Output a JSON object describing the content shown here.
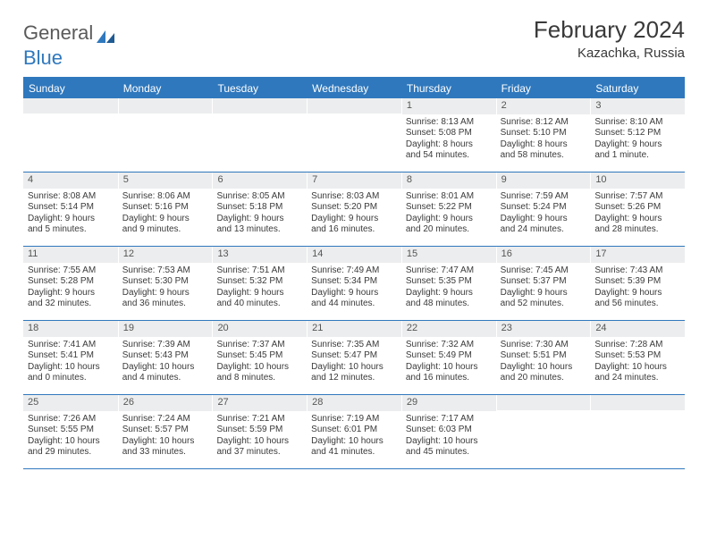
{
  "brand": {
    "part1": "General",
    "part2": "Blue"
  },
  "title": "February 2024",
  "location": "Kazachka, Russia",
  "colors": {
    "accent": "#2f78bd",
    "header_text": "#ffffff",
    "daynum_bg": "#ecedee",
    "body_text": "#3a3a3a",
    "page_bg": "#ffffff"
  },
  "dow": [
    "Sunday",
    "Monday",
    "Tuesday",
    "Wednesday",
    "Thursday",
    "Friday",
    "Saturday"
  ],
  "weeks": [
    [
      {
        "n": "",
        "lines": []
      },
      {
        "n": "",
        "lines": []
      },
      {
        "n": "",
        "lines": []
      },
      {
        "n": "",
        "lines": []
      },
      {
        "n": "1",
        "lines": [
          "Sunrise: 8:13 AM",
          "Sunset: 5:08 PM",
          "Daylight: 8 hours",
          "and 54 minutes."
        ]
      },
      {
        "n": "2",
        "lines": [
          "Sunrise: 8:12 AM",
          "Sunset: 5:10 PM",
          "Daylight: 8 hours",
          "and 58 minutes."
        ]
      },
      {
        "n": "3",
        "lines": [
          "Sunrise: 8:10 AM",
          "Sunset: 5:12 PM",
          "Daylight: 9 hours",
          "and 1 minute."
        ]
      }
    ],
    [
      {
        "n": "4",
        "lines": [
          "Sunrise: 8:08 AM",
          "Sunset: 5:14 PM",
          "Daylight: 9 hours",
          "and 5 minutes."
        ]
      },
      {
        "n": "5",
        "lines": [
          "Sunrise: 8:06 AM",
          "Sunset: 5:16 PM",
          "Daylight: 9 hours",
          "and 9 minutes."
        ]
      },
      {
        "n": "6",
        "lines": [
          "Sunrise: 8:05 AM",
          "Sunset: 5:18 PM",
          "Daylight: 9 hours",
          "and 13 minutes."
        ]
      },
      {
        "n": "7",
        "lines": [
          "Sunrise: 8:03 AM",
          "Sunset: 5:20 PM",
          "Daylight: 9 hours",
          "and 16 minutes."
        ]
      },
      {
        "n": "8",
        "lines": [
          "Sunrise: 8:01 AM",
          "Sunset: 5:22 PM",
          "Daylight: 9 hours",
          "and 20 minutes."
        ]
      },
      {
        "n": "9",
        "lines": [
          "Sunrise: 7:59 AM",
          "Sunset: 5:24 PM",
          "Daylight: 9 hours",
          "and 24 minutes."
        ]
      },
      {
        "n": "10",
        "lines": [
          "Sunrise: 7:57 AM",
          "Sunset: 5:26 PM",
          "Daylight: 9 hours",
          "and 28 minutes."
        ]
      }
    ],
    [
      {
        "n": "11",
        "lines": [
          "Sunrise: 7:55 AM",
          "Sunset: 5:28 PM",
          "Daylight: 9 hours",
          "and 32 minutes."
        ]
      },
      {
        "n": "12",
        "lines": [
          "Sunrise: 7:53 AM",
          "Sunset: 5:30 PM",
          "Daylight: 9 hours",
          "and 36 minutes."
        ]
      },
      {
        "n": "13",
        "lines": [
          "Sunrise: 7:51 AM",
          "Sunset: 5:32 PM",
          "Daylight: 9 hours",
          "and 40 minutes."
        ]
      },
      {
        "n": "14",
        "lines": [
          "Sunrise: 7:49 AM",
          "Sunset: 5:34 PM",
          "Daylight: 9 hours",
          "and 44 minutes."
        ]
      },
      {
        "n": "15",
        "lines": [
          "Sunrise: 7:47 AM",
          "Sunset: 5:35 PM",
          "Daylight: 9 hours",
          "and 48 minutes."
        ]
      },
      {
        "n": "16",
        "lines": [
          "Sunrise: 7:45 AM",
          "Sunset: 5:37 PM",
          "Daylight: 9 hours",
          "and 52 minutes."
        ]
      },
      {
        "n": "17",
        "lines": [
          "Sunrise: 7:43 AM",
          "Sunset: 5:39 PM",
          "Daylight: 9 hours",
          "and 56 minutes."
        ]
      }
    ],
    [
      {
        "n": "18",
        "lines": [
          "Sunrise: 7:41 AM",
          "Sunset: 5:41 PM",
          "Daylight: 10 hours",
          "and 0 minutes."
        ]
      },
      {
        "n": "19",
        "lines": [
          "Sunrise: 7:39 AM",
          "Sunset: 5:43 PM",
          "Daylight: 10 hours",
          "and 4 minutes."
        ]
      },
      {
        "n": "20",
        "lines": [
          "Sunrise: 7:37 AM",
          "Sunset: 5:45 PM",
          "Daylight: 10 hours",
          "and 8 minutes."
        ]
      },
      {
        "n": "21",
        "lines": [
          "Sunrise: 7:35 AM",
          "Sunset: 5:47 PM",
          "Daylight: 10 hours",
          "and 12 minutes."
        ]
      },
      {
        "n": "22",
        "lines": [
          "Sunrise: 7:32 AM",
          "Sunset: 5:49 PM",
          "Daylight: 10 hours",
          "and 16 minutes."
        ]
      },
      {
        "n": "23",
        "lines": [
          "Sunrise: 7:30 AM",
          "Sunset: 5:51 PM",
          "Daylight: 10 hours",
          "and 20 minutes."
        ]
      },
      {
        "n": "24",
        "lines": [
          "Sunrise: 7:28 AM",
          "Sunset: 5:53 PM",
          "Daylight: 10 hours",
          "and 24 minutes."
        ]
      }
    ],
    [
      {
        "n": "25",
        "lines": [
          "Sunrise: 7:26 AM",
          "Sunset: 5:55 PM",
          "Daylight: 10 hours",
          "and 29 minutes."
        ]
      },
      {
        "n": "26",
        "lines": [
          "Sunrise: 7:24 AM",
          "Sunset: 5:57 PM",
          "Daylight: 10 hours",
          "and 33 minutes."
        ]
      },
      {
        "n": "27",
        "lines": [
          "Sunrise: 7:21 AM",
          "Sunset: 5:59 PM",
          "Daylight: 10 hours",
          "and 37 minutes."
        ]
      },
      {
        "n": "28",
        "lines": [
          "Sunrise: 7:19 AM",
          "Sunset: 6:01 PM",
          "Daylight: 10 hours",
          "and 41 minutes."
        ]
      },
      {
        "n": "29",
        "lines": [
          "Sunrise: 7:17 AM",
          "Sunset: 6:03 PM",
          "Daylight: 10 hours",
          "and 45 minutes."
        ]
      },
      {
        "n": "",
        "lines": []
      },
      {
        "n": "",
        "lines": []
      }
    ]
  ]
}
